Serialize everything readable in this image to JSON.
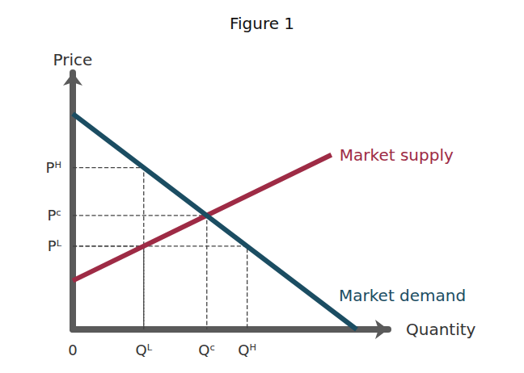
{
  "chart_data": {
    "type": "line",
    "title": "Figure 1",
    "x_label": "Quantity",
    "y_label": "Price",
    "xlim": [
      0,
      10
    ],
    "ylim": [
      0,
      10
    ],
    "xticks": [
      0,
      {
        "value": 2.25,
        "label": "Qᴸ"
      },
      {
        "value": 4.25,
        "label": "Qᶜ"
      },
      {
        "value": 5.53,
        "label": "Qᴴ"
      }
    ],
    "yticks": [
      {
        "value": 3.24,
        "label": "Pᴸ"
      },
      {
        "value": 4.44,
        "label": "Pᶜ"
      },
      {
        "value": 6.3,
        "label": "Pᴴ"
      }
    ],
    "grid": false,
    "series": [
      {
        "name": "Market supply",
        "color": "#9e2b45",
        "x": [
          0,
          8.2
        ],
        "values": [
          1.9,
          6.8
        ]
      },
      {
        "name": "Market demand",
        "color": "#1b4d62",
        "x": [
          0,
          9
        ],
        "values": [
          8.4,
          0
        ]
      }
    ],
    "reference_points": {
      "x": [
        2.25,
        4.25,
        2.25,
        5.53
      ],
      "values": [
        6.3,
        4.44,
        3.24,
        3.24
      ],
      "line_style": "dashed",
      "color": "#444444"
    }
  }
}
